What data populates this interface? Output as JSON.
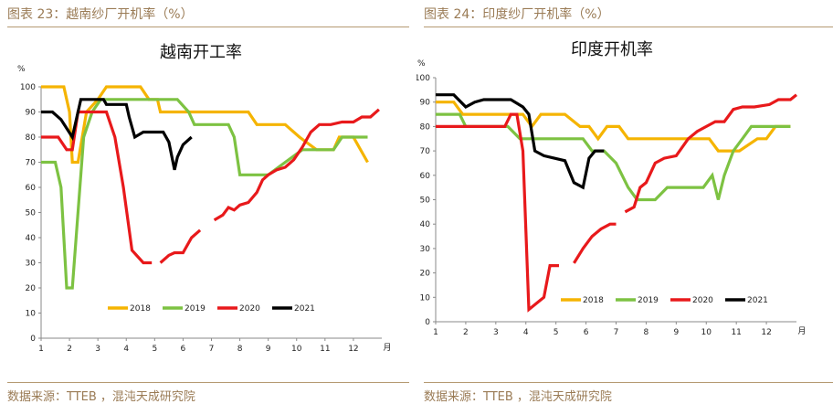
{
  "left": {
    "caption": "图表 23：越南纱厂开机率（%）",
    "source": "数据来源：TTEB ，混沌天成研究院"
  },
  "right": {
    "caption": "图表 24：印度纱厂开机率（%）",
    "source": "数据来源：TTEB ，混沌天成研究院"
  },
  "chart_data": [
    {
      "type": "line",
      "title": "越南开工率",
      "ylabel": "%",
      "xlabel": "月",
      "xlim": [
        1,
        13
      ],
      "ylim": [
        0,
        100
      ],
      "xticks": [
        "1",
        "2",
        "3",
        "4",
        "5",
        "6",
        "7",
        "8",
        "9",
        "10",
        "11",
        "12"
      ],
      "yticks": [
        "0",
        "10",
        "20",
        "30",
        "40",
        "50",
        "60",
        "70",
        "80",
        "90",
        "100"
      ],
      "legend_position": "bottom-center",
      "series": [
        {
          "name": "2018",
          "color": "#f5b400",
          "segments": [
            [
              [
                1,
                100
              ],
              [
                1.8,
                100
              ],
              [
                2.0,
                90
              ],
              [
                2.1,
                70
              ],
              [
                2.3,
                70
              ],
              [
                2.6,
                90
              ],
              [
                3.0,
                95
              ],
              [
                3.3,
                100
              ],
              [
                4.5,
                100
              ],
              [
                4.8,
                95
              ],
              [
                5.1,
                95
              ],
              [
                5.2,
                90
              ],
              [
                6.3,
                90
              ],
              [
                8.3,
                90
              ],
              [
                8.6,
                85
              ],
              [
                9.6,
                85
              ],
              [
                10.1,
                80
              ],
              [
                10.7,
                75
              ],
              [
                11.3,
                75
              ],
              [
                11.5,
                80
              ],
              [
                12.0,
                80
              ],
              [
                12.5,
                70
              ]
            ]
          ]
        },
        {
          "name": "2019",
          "color": "#7dc242",
          "segments": [
            [
              [
                1,
                70
              ],
              [
                1.5,
                70
              ],
              [
                1.7,
                60
              ],
              [
                1.9,
                20
              ],
              [
                2.1,
                20
              ],
              [
                2.3,
                50
              ],
              [
                2.5,
                80
              ],
              [
                2.8,
                90
              ],
              [
                3.1,
                95
              ],
              [
                4.4,
                95
              ],
              [
                5.8,
                95
              ],
              [
                6.2,
                90
              ],
              [
                6.4,
                85
              ],
              [
                7.6,
                85
              ],
              [
                7.8,
                80
              ],
              [
                8.0,
                65
              ],
              [
                9.0,
                65
              ],
              [
                9.6,
                70
              ],
              [
                10.2,
                75
              ],
              [
                10.6,
                75
              ],
              [
                10.9,
                75
              ],
              [
                11.3,
                75
              ],
              [
                11.6,
                80
              ],
              [
                12.5,
                80
              ]
            ]
          ]
        },
        {
          "name": "2020",
          "color": "#e8191b",
          "segments": [
            [
              [
                1,
                80
              ],
              [
                1.6,
                80
              ],
              [
                1.9,
                75
              ],
              [
                2.1,
                75
              ],
              [
                2.3,
                90
              ],
              [
                3.3,
                90
              ],
              [
                3.6,
                80
              ],
              [
                3.9,
                60
              ],
              [
                4.2,
                35
              ],
              [
                4.6,
                30
              ],
              [
                4.9,
                30
              ]
            ],
            [
              [
                5.2,
                30
              ],
              [
                5.5,
                33
              ],
              [
                5.7,
                34
              ],
              [
                6.0,
                34
              ],
              [
                6.3,
                40
              ],
              [
                6.6,
                43
              ]
            ],
            [
              [
                7.1,
                47
              ],
              [
                7.4,
                49
              ],
              [
                7.6,
                52
              ],
              [
                7.8,
                51
              ],
              [
                8.0,
                53
              ],
              [
                8.3,
                54
              ],
              [
                8.6,
                58
              ],
              [
                8.8,
                63
              ],
              [
                9.0,
                65
              ],
              [
                9.3,
                67
              ],
              [
                9.6,
                68
              ],
              [
                9.9,
                71
              ],
              [
                10.2,
                76
              ],
              [
                10.5,
                82
              ],
              [
                10.8,
                85
              ],
              [
                11.2,
                85
              ],
              [
                11.6,
                86
              ],
              [
                12.0,
                86
              ],
              [
                12.3,
                88
              ],
              [
                12.6,
                88
              ],
              [
                12.9,
                91
              ]
            ]
          ]
        },
        {
          "name": "2021",
          "color": "#000000",
          "segments": [
            [
              [
                1,
                90
              ],
              [
                1.4,
                90
              ],
              [
                1.7,
                87
              ],
              [
                2.1,
                80
              ],
              [
                2.4,
                95
              ],
              [
                3.2,
                95
              ],
              [
                3.3,
                93
              ],
              [
                4.0,
                93
              ],
              [
                4.1,
                88
              ],
              [
                4.3,
                80
              ],
              [
                4.6,
                82
              ],
              [
                5.3,
                82
              ],
              [
                5.5,
                78
              ],
              [
                5.7,
                67
              ],
              [
                5.8,
                72
              ],
              [
                6.0,
                77
              ],
              [
                6.3,
                80
              ]
            ]
          ]
        }
      ]
    },
    {
      "type": "line",
      "title": "印度开机率",
      "ylabel": "%",
      "xlabel": "月",
      "xlim": [
        1,
        13
      ],
      "ylim": [
        0,
        100
      ],
      "xticks": [
        "1",
        "2",
        "3",
        "4",
        "5",
        "6",
        "7",
        "8",
        "9",
        "10",
        "11",
        "12"
      ],
      "yticks": [
        "0",
        "10",
        "20",
        "30",
        "40",
        "50",
        "60",
        "70",
        "80",
        "90",
        "100"
      ],
      "legend_position": "bottom-center",
      "series": [
        {
          "name": "2018",
          "color": "#f5b400",
          "segments": [
            [
              [
                1,
                90
              ],
              [
                1.6,
                90
              ],
              [
                1.9,
                85
              ],
              [
                3.0,
                85
              ],
              [
                3.9,
                85
              ],
              [
                4.2,
                80
              ],
              [
                4.5,
                85
              ],
              [
                5.3,
                85
              ],
              [
                5.8,
                80
              ],
              [
                6.1,
                80
              ],
              [
                6.4,
                75
              ],
              [
                6.7,
                80
              ],
              [
                7.1,
                80
              ],
              [
                7.4,
                75
              ],
              [
                8.7,
                75
              ],
              [
                10.1,
                75
              ],
              [
                10.4,
                70
              ],
              [
                11.1,
                70
              ],
              [
                11.7,
                75
              ],
              [
                12.0,
                75
              ],
              [
                12.3,
                80
              ],
              [
                12.8,
                80
              ]
            ]
          ]
        },
        {
          "name": "2019",
          "color": "#7dc242",
          "segments": [
            [
              [
                1,
                85
              ],
              [
                1.8,
                85
              ],
              [
                2.0,
                80
              ],
              [
                3.0,
                80
              ],
              [
                3.4,
                80
              ],
              [
                3.8,
                75
              ],
              [
                5.9,
                75
              ],
              [
                6.2,
                70
              ],
              [
                6.6,
                70
              ],
              [
                7.0,
                65
              ],
              [
                7.4,
                55
              ],
              [
                7.7,
                50
              ],
              [
                8.3,
                50
              ],
              [
                8.7,
                55
              ],
              [
                9.6,
                55
              ],
              [
                9.9,
                55
              ],
              [
                10.2,
                60
              ],
              [
                10.4,
                50
              ],
              [
                10.6,
                60
              ],
              [
                10.9,
                70
              ],
              [
                11.2,
                75
              ],
              [
                11.5,
                80
              ],
              [
                12.8,
                80
              ]
            ]
          ]
        },
        {
          "name": "2020",
          "color": "#e8191b",
          "segments": [
            [
              [
                1,
                80
              ],
              [
                3.3,
                80
              ],
              [
                3.5,
                85
              ],
              [
                3.7,
                85
              ],
              [
                3.9,
                70
              ],
              [
                4.1,
                5
              ],
              [
                4.6,
                10
              ],
              [
                4.8,
                23
              ],
              [
                5.1,
                23
              ]
            ],
            [
              [
                5.6,
                24
              ],
              [
                5.9,
                30
              ],
              [
                6.2,
                35
              ],
              [
                6.5,
                38
              ],
              [
                6.8,
                40
              ],
              [
                7.0,
                40
              ]
            ],
            [
              [
                7.3,
                45
              ],
              [
                7.6,
                47
              ],
              [
                7.8,
                55
              ],
              [
                8.0,
                57
              ],
              [
                8.3,
                65
              ],
              [
                8.6,
                67
              ],
              [
                9.0,
                68
              ],
              [
                9.4,
                75
              ],
              [
                9.7,
                78
              ],
              [
                10.0,
                80
              ],
              [
                10.3,
                82
              ],
              [
                10.6,
                82
              ],
              [
                10.9,
                87
              ],
              [
                11.2,
                88
              ],
              [
                11.6,
                88
              ],
              [
                12.1,
                89
              ],
              [
                12.4,
                91
              ],
              [
                12.8,
                91
              ],
              [
                13.0,
                93
              ]
            ]
          ]
        },
        {
          "name": "2021",
          "color": "#000000",
          "segments": [
            [
              [
                1,
                93
              ],
              [
                1.6,
                93
              ],
              [
                2.0,
                88
              ],
              [
                2.3,
                90
              ],
              [
                2.6,
                91
              ],
              [
                3.5,
                91
              ],
              [
                3.9,
                88
              ],
              [
                4.1,
                85
              ],
              [
                4.3,
                70
              ],
              [
                4.6,
                68
              ],
              [
                5.3,
                66
              ],
              [
                5.6,
                57
              ],
              [
                5.9,
                55
              ],
              [
                6.1,
                67
              ],
              [
                6.3,
                70
              ],
              [
                6.6,
                70
              ]
            ]
          ]
        }
      ]
    }
  ]
}
